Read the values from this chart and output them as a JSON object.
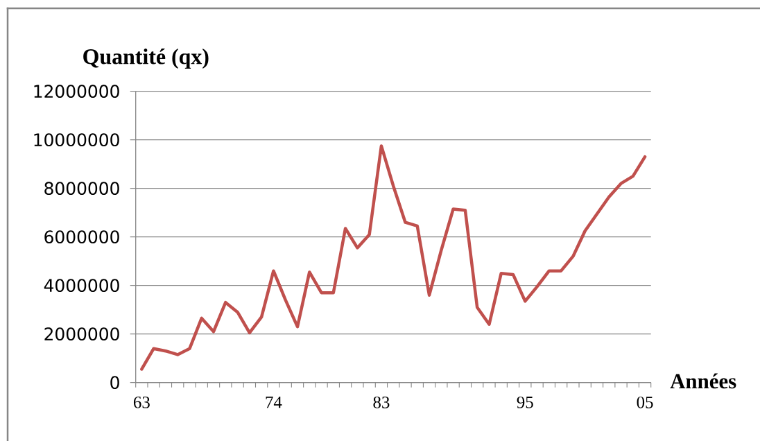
{
  "chart_data": {
    "type": "line",
    "xlabel": "Années",
    "ylabel": "Quantité (qx)",
    "categories": [
      "63",
      null,
      null,
      null,
      null,
      null,
      null,
      null,
      null,
      null,
      null,
      "74",
      null,
      null,
      null,
      null,
      null,
      null,
      null,
      null,
      "83",
      null,
      null,
      null,
      null,
      null,
      null,
      null,
      null,
      null,
      null,
      null,
      "95",
      null,
      null,
      null,
      null,
      null,
      null,
      null,
      null,
      null,
      "05"
    ],
    "series": [
      {
        "color": "#c0504d",
        "values": [
          550000,
          1400000,
          1300000,
          1150000,
          1400000,
          2650000,
          2100000,
          3300000,
          2900000,
          2050000,
          2700000,
          4600000,
          3400000,
          2300000,
          4550000,
          3700000,
          3700000,
          6350000,
          5550000,
          6100000,
          9750000,
          8100000,
          6600000,
          6450000,
          3600000,
          5450000,
          7150000,
          7100000,
          3100000,
          2400000,
          4500000,
          4450000,
          3350000,
          3950000,
          4600000,
          4600000,
          5200000,
          6250000,
          6950000,
          7650000,
          8200000,
          8500000,
          9300000
        ]
      }
    ],
    "ylim": [
      0,
      12000000
    ],
    "yticks": [
      0,
      2000000,
      4000000,
      6000000,
      8000000,
      10000000,
      12000000
    ],
    "grid": "y",
    "marker": "none",
    "line_style": "solid"
  }
}
